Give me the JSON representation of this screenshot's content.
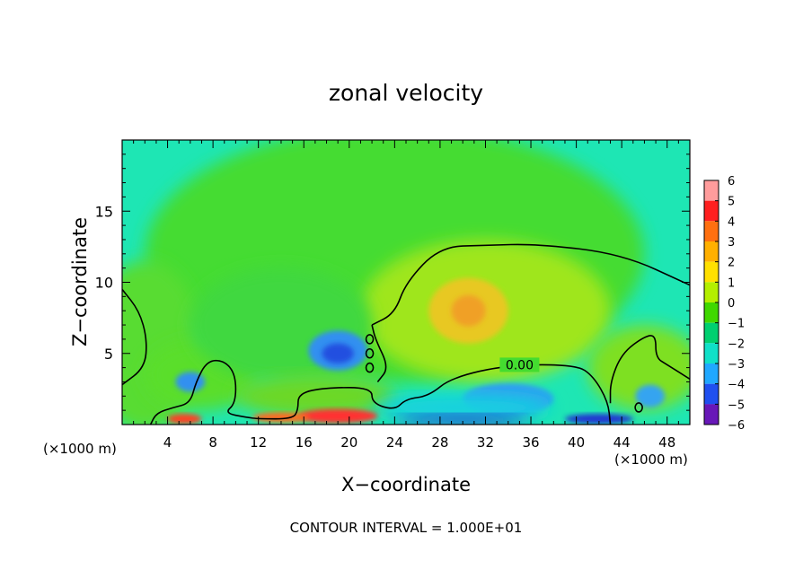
{
  "chart_data": {
    "type": "heatmap",
    "title": "zonal velocity",
    "xlabel": "X−coordinate",
    "ylabel": "Z−coordinate",
    "x_unit_left": "(×1000 m)",
    "x_unit_right": "(×1000 m)",
    "footer": "CONTOUR INTERVAL = 1.000E+01",
    "xlim": [
      0,
      50
    ],
    "ylim": [
      0,
      20
    ],
    "x_ticks": [
      4,
      8,
      12,
      16,
      20,
      24,
      28,
      32,
      36,
      40,
      44,
      48
    ],
    "x_minor_step": 1,
    "y_ticks": [
      5,
      10,
      15
    ],
    "y_minor_step": 1,
    "colorbar": {
      "levels": [
        6,
        5,
        4,
        3,
        2,
        1,
        0,
        -1,
        -2,
        -3,
        -4,
        -5,
        -6
      ],
      "labels": [
        "6",
        "5",
        "4",
        "3",
        "2",
        "1",
        "0",
        "−1",
        "−2",
        "−3",
        "−4",
        "−5",
        "−6"
      ],
      "colors": [
        "#ff9c9c",
        "#ff2020",
        "#ff7010",
        "#ffb000",
        "#ffe000",
        "#b4ef00",
        "#40d800",
        "#00d070",
        "#10e0c8",
        "#20a8ff",
        "#2050f0",
        "#1010c8",
        "#6818b8"
      ]
    },
    "contour_label": "0.00",
    "contour_label_pos": [
      35,
      4.2
    ],
    "field_background": "#1ee6b4",
    "features": [
      {
        "cx": 24,
        "cy": 12,
        "rx": 22,
        "ry": 9,
        "value": 1,
        "color": "#44dc30"
      },
      {
        "cx": 32,
        "cy": 8,
        "rx": 11,
        "ry": 5,
        "value": 1.5,
        "color": "#9fe61c"
      },
      {
        "cx": 30.5,
        "cy": 8,
        "rx": 3.5,
        "ry": 2.3,
        "value": 2.5,
        "color": "#e8c820"
      },
      {
        "cx": 30.5,
        "cy": 8,
        "rx": 1.5,
        "ry": 1.1,
        "value": 3,
        "color": "#f0a028"
      },
      {
        "cx": 2,
        "cy": 5.5,
        "rx": 5,
        "ry": 6,
        "value": 0.8,
        "color": "#58dc30"
      },
      {
        "cx": 7,
        "cy": 3.5,
        "rx": 5,
        "ry": 2.5,
        "value": 0.6,
        "color": "#5ade2c"
      },
      {
        "cx": 14,
        "cy": 7,
        "rx": 8,
        "ry": 4,
        "value": 0.4,
        "color": "#40d840"
      },
      {
        "cx": 46,
        "cy": 4,
        "rx": 5,
        "ry": 3,
        "value": 0.8,
        "color": "#7ee020"
      },
      {
        "cx": 17,
        "cy": 2,
        "rx": 7,
        "ry": 1.5,
        "value": 0.8,
        "color": "#6cd828"
      },
      {
        "cx": 19,
        "cy": 5.2,
        "rx": 2.6,
        "ry": 1.4,
        "value": -2.5,
        "color": "#3090f0"
      },
      {
        "cx": 19,
        "cy": 5,
        "rx": 1.4,
        "ry": 0.7,
        "value": -3.5,
        "color": "#2050e0"
      },
      {
        "cx": 34,
        "cy": 1.8,
        "rx": 4,
        "ry": 1.1,
        "value": -2.3,
        "color": "#2ea0f0"
      },
      {
        "cx": 30,
        "cy": 1.2,
        "rx": 8,
        "ry": 0.9,
        "value": -2,
        "color": "#16d0e0"
      },
      {
        "cx": 6,
        "cy": 3,
        "rx": 1.3,
        "ry": 0.7,
        "value": -2.5,
        "color": "#3090f0"
      },
      {
        "cx": 46.5,
        "cy": 2,
        "rx": 1.3,
        "ry": 0.8,
        "value": -2.2,
        "color": "#34a4f0"
      },
      {
        "cx": 19,
        "cy": 0.6,
        "rx": 3.5,
        "ry": 0.5,
        "value": 5,
        "color": "#ff3030"
      },
      {
        "cx": 5.5,
        "cy": 0.4,
        "rx": 1.5,
        "ry": 0.35,
        "value": 4.5,
        "color": "#ff4020"
      },
      {
        "cx": 14,
        "cy": 0.5,
        "rx": 2.5,
        "ry": 0.35,
        "value": 4,
        "color": "#ff6a20"
      },
      {
        "cx": 30,
        "cy": 0.35,
        "rx": 6,
        "ry": 0.35,
        "value": -4,
        "color": "#2034d0"
      },
      {
        "cx": 42,
        "cy": 0.4,
        "rx": 3,
        "ry": 0.35,
        "value": -4,
        "color": "#2034d0"
      }
    ],
    "zero_contours": [
      [
        [
          0,
          9.5
        ],
        [
          1.5,
          8
        ],
        [
          2.2,
          6
        ],
        [
          2,
          4
        ],
        [
          0,
          2.8
        ]
      ],
      [
        [
          2.5,
          0
        ],
        [
          3,
          0.8
        ],
        [
          4.5,
          1.2
        ],
        [
          6,
          1.5
        ],
        [
          6.5,
          3
        ],
        [
          7.5,
          4.5
        ],
        [
          9,
          4.5
        ],
        [
          10,
          3.5
        ],
        [
          10,
          1.5
        ],
        [
          9,
          0.8
        ],
        [
          11,
          0.5
        ],
        [
          12,
          0.4
        ],
        [
          15,
          0.4
        ],
        [
          15.5,
          1
        ],
        [
          15.5,
          2.2
        ],
        [
          18,
          2.6
        ],
        [
          22,
          2.6
        ],
        [
          22,
          1.5
        ],
        [
          24,
          1
        ],
        [
          25,
          1.8
        ],
        [
          27,
          2
        ],
        [
          29,
          3.3
        ],
        [
          34,
          4.2
        ],
        [
          40,
          4.2
        ],
        [
          41.5,
          3.4
        ],
        [
          42.8,
          1.6
        ],
        [
          43,
          0
        ]
      ],
      [
        [
          22,
          7
        ],
        [
          24,
          7.8
        ],
        [
          25,
          10
        ],
        [
          28,
          12.5
        ],
        [
          32,
          12.6
        ],
        [
          36.5,
          12.7
        ],
        [
          44,
          12
        ],
        [
          50,
          9.8
        ]
      ],
      [
        [
          43,
          1.5
        ],
        [
          43,
          3
        ],
        [
          44,
          5
        ],
        [
          46,
          6.2
        ],
        [
          47,
          6.3
        ],
        [
          47,
          4.7
        ],
        [
          48,
          4.2
        ],
        [
          50,
          3.2
        ]
      ],
      [
        [
          22.5,
          3
        ],
        [
          23.5,
          4
        ],
        [
          22.3,
          6
        ],
        [
          22,
          7
        ]
      ]
    ],
    "small_loops": [
      [
        21.8,
        6
      ],
      [
        21.8,
        5
      ],
      [
        21.8,
        4
      ],
      [
        45.5,
        1.2
      ]
    ]
  }
}
